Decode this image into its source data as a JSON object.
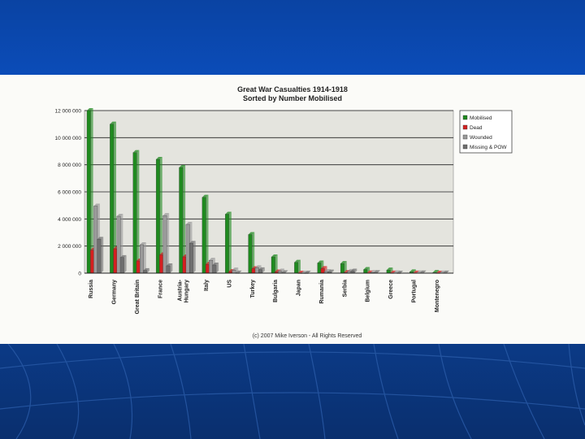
{
  "colors": {
    "slide_top": "#0b4cb8",
    "slide_bottom": "#0a2f6e",
    "panel": "#fbfbf8",
    "plot_bg": "#e4e4de",
    "mobilised": "#1f8a1f",
    "dead": "#d42020",
    "wounded": "#9a9a9a",
    "missing": "#6f6f6f"
  },
  "copyright": "(c) 2007 Mike Iverson - All Rights Reserved",
  "chart_data": {
    "type": "bar",
    "title": "Great War Casualties 1914-1918",
    "subtitle": "Sorted by Number Mobilised",
    "xlabel": "",
    "ylabel": "",
    "ylim": [
      0,
      12000000
    ],
    "yticks": [
      0,
      2000000,
      4000000,
      6000000,
      8000000,
      10000000,
      12000000
    ],
    "ytick_labels": [
      "0",
      "2 000 000",
      "4 000 000",
      "6 000 000",
      "8 000 000",
      "10 000 000",
      "12 000 000"
    ],
    "grid": true,
    "legend_position": "top-right",
    "categories": [
      "Russia",
      "Germany",
      "Great Britain",
      "France",
      "Austria-Hungary",
      "Italy",
      "US",
      "Turkey",
      "Bulgaria",
      "Japan",
      "Rumania",
      "Serbia",
      "Belgium",
      "Greece",
      "Portugal",
      "Montenegro"
    ],
    "category_lines": [
      [
        "Russia"
      ],
      [
        "Germany"
      ],
      [
        "Great Britain"
      ],
      [
        "France"
      ],
      [
        "Austria-",
        "Hungary"
      ],
      [
        "Italy"
      ],
      [
        "US"
      ],
      [
        "Turkey"
      ],
      [
        "Bulgaria"
      ],
      [
        "Japan"
      ],
      [
        "Rumania"
      ],
      [
        "Serbia"
      ],
      [
        "Belgium"
      ],
      [
        "Greece"
      ],
      [
        "Portugal"
      ],
      [
        "Montenegro"
      ]
    ],
    "series": [
      {
        "name": "Mobilised",
        "values": [
          12000000,
          11000000,
          8900000,
          8400000,
          7800000,
          5600000,
          4350000,
          2850000,
          1200000,
          800000,
          750000,
          710000,
          270000,
          230000,
          100000,
          50000
        ]
      },
      {
        "name": "Dead",
        "values": [
          1700000,
          1800000,
          900000,
          1350000,
          1200000,
          650000,
          120000,
          330000,
          90000,
          1000,
          340000,
          45000,
          14000,
          5000,
          7000,
          3000
        ]
      },
      {
        "name": "Wounded",
        "values": [
          4950000,
          4200000,
          2100000,
          4250000,
          3600000,
          950000,
          230000,
          400000,
          150000,
          900,
          120000,
          130000,
          45000,
          21000,
          14000,
          10000
        ]
      },
      {
        "name": "Missing & POW",
        "values": [
          2500000,
          1150000,
          190000,
          540000,
          2200000,
          600000,
          4500,
          250000,
          27000,
          3,
          80000,
          150000,
          34000,
          1000,
          12000,
          7000
        ]
      }
    ]
  }
}
